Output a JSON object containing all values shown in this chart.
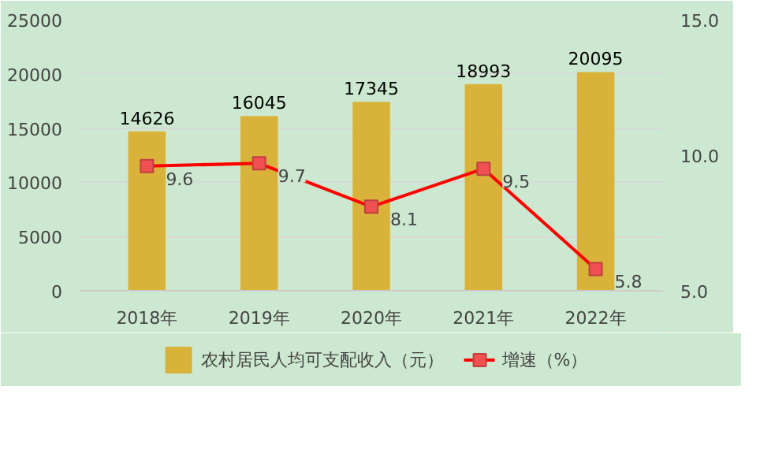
{
  "chart_data": {
    "type": "bar",
    "categories": [
      "2018年",
      "2019年",
      "2020年",
      "2021年",
      "2022年"
    ],
    "series": [
      {
        "name": "农村居民人均可支配收入（元）",
        "color": "#d9b23a",
        "values": [
          14626,
          16045,
          17345,
          18993,
          20095
        ]
      },
      {
        "name": "增速（%）",
        "type": "line",
        "axis": "y2",
        "color": "#ff0000",
        "marker": "square",
        "values": [
          9.6,
          9.7,
          8.1,
          9.5,
          5.8
        ]
      }
    ],
    "ylim": [
      0,
      25000
    ],
    "yticks": [
      0,
      5000,
      10000,
      15000,
      20000,
      25000
    ],
    "y2lim": [
      5.0,
      15.0
    ],
    "y2ticks": [
      {
        "value": 5,
        "label": "5.0"
      },
      {
        "value": 10,
        "label": "10.0"
      },
      {
        "value": 15,
        "label": "15.0"
      }
    ],
    "data_labels": true,
    "grid": "y",
    "legend": "bottom"
  }
}
